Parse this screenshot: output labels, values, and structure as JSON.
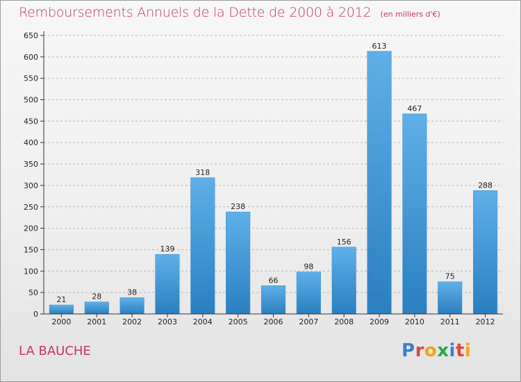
{
  "chart_data": {
    "type": "bar",
    "title": "Remboursements Annuels de la Dette de 2000 à 2012",
    "unit_note": "(en milliers d'€)",
    "categories": [
      "2000",
      "2001",
      "2002",
      "2003",
      "2004",
      "2005",
      "2006",
      "2007",
      "2008",
      "2009",
      "2010",
      "2011",
      "2012"
    ],
    "values": [
      21,
      28,
      38,
      139,
      318,
      238,
      66,
      98,
      156,
      613,
      467,
      75,
      288
    ],
    "ylim": [
      0,
      650
    ],
    "yticks": [
      0,
      50,
      100,
      150,
      200,
      250,
      300,
      350,
      400,
      450,
      500,
      550,
      600,
      650
    ],
    "xlabel": "",
    "ylabel": "",
    "grid": true,
    "bar_color_top": "#5fb0e8",
    "bar_color_bottom": "#2a7fc0"
  },
  "commune_name": "LA BAUCHE",
  "logo": {
    "text": "Proxiti",
    "letter_colors": [
      "#3a7fd0",
      "#e0453a",
      "#f2a31b",
      "#2aa84a",
      "#3a7fd0",
      "#e0453a",
      "#f2a31b"
    ]
  },
  "colors": {
    "title": "#c8336f",
    "axis": "#333333",
    "grid": "#b8b8b8"
  }
}
